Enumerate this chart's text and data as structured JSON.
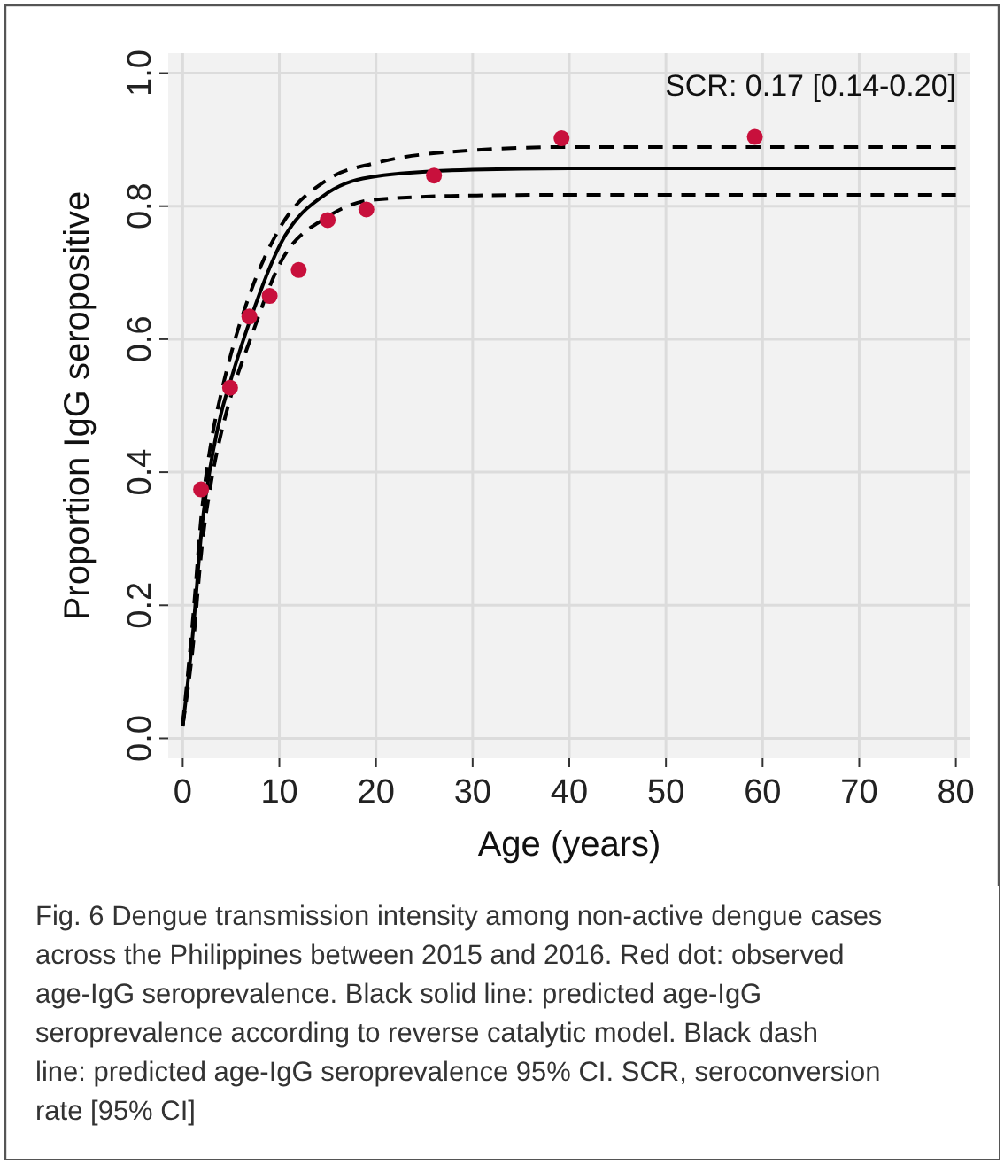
{
  "chart_data": {
    "type": "scatter",
    "xlabel": "Age (years)",
    "ylabel": "Proportion IgG seropositive",
    "xlim": [
      -1.5,
      81.5
    ],
    "ylim": [
      -0.03,
      1.03
    ],
    "xticks": [
      0,
      10,
      20,
      30,
      40,
      50,
      60,
      70,
      80
    ],
    "yticks": [
      {
        "value": 0,
        "label": "0.0"
      },
      0.2,
      0.4,
      0.6,
      0.8,
      {
        "value": 1,
        "label": "1.0"
      }
    ],
    "grid": true,
    "series": [
      {
        "type": "line",
        "color": "#000000",
        "line_style": "dashed",
        "x": [
          0,
          1,
          2,
          3,
          4,
          5,
          7,
          10,
          15,
          20,
          30,
          40,
          80
        ],
        "values": [
          0.02,
          0.17,
          0.345,
          0.45,
          0.52,
          0.578,
          0.67,
          0.766,
          0.84,
          0.865,
          0.884,
          0.889,
          0.889
        ]
      },
      {
        "type": "line",
        "color": "#000000",
        "line_style": "dashed",
        "x": [
          0,
          1,
          2,
          3,
          4,
          5,
          7,
          10,
          15,
          20,
          30,
          40,
          80
        ],
        "values": [
          0.02,
          0.13,
          0.29,
          0.39,
          0.46,
          0.515,
          0.6,
          0.712,
          0.784,
          0.81,
          0.816,
          0.817,
          0.817
        ]
      },
      {
        "type": "line",
        "color": "#000000",
        "line_style": "solid",
        "x": [
          0,
          1,
          2,
          3,
          4,
          5,
          7,
          10,
          15,
          20,
          30,
          40,
          80
        ],
        "values": [
          0.018,
          0.15,
          0.32,
          0.42,
          0.49,
          0.54,
          0.63,
          0.74,
          0.82,
          0.845,
          0.855,
          0.857,
          0.857
        ]
      },
      {
        "color": "#c8103c",
        "marker": "circle",
        "x": [
          1.9,
          4.9,
          6.9,
          9.0,
          12.0,
          15.0,
          19.0,
          26.0,
          39.2,
          59.2
        ],
        "values": [
          0.374,
          0.527,
          0.634,
          0.665,
          0.704,
          0.779,
          0.795,
          0.846,
          0.902,
          0.904
        ]
      }
    ],
    "annotations": [
      "SCR: 0.17 [0.14-0.20]",
      "Fig. 6 Dengue transmission intensity among non-active dengue cases across the Philippines between 2015 and 2016. Red dot: observed age-IgG seroprevalence. Black solid line: predicted age-IgG seroprevalence according to reverse catalytic model. Black dash line: predicted age-IgG seroprevalence 95% CI. SCR, seroconversion rate [95% CI]"
    ]
  }
}
